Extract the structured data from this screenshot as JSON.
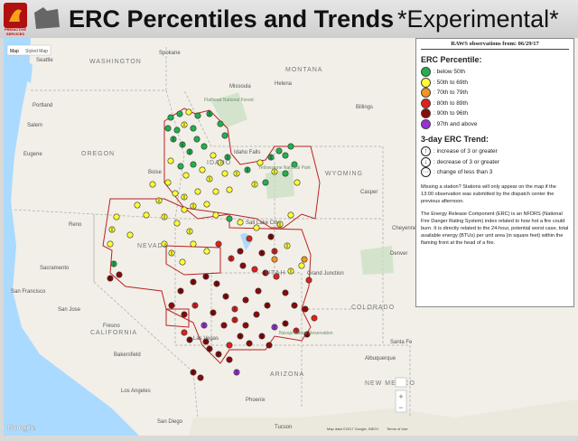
{
  "header": {
    "title": "ERC Percentiles and Trends",
    "subtitle": "*Experimental*",
    "logo_text": "PREDICTIVE SERVICES"
  },
  "map": {
    "controls": [
      "Map",
      "Styled Map"
    ],
    "places": [
      "WASHINGTON",
      "MONTANA",
      "OREGON",
      "IDAHO",
      "WYOMING",
      "CALIFORNIA",
      "ARIZONA",
      "NEW MEXICO",
      "COLORADO",
      "UTAH",
      "NEVADA",
      "Seattle",
      "Spokane",
      "Portland",
      "Salem",
      "Eugene",
      "Boise",
      "Idaho Falls",
      "Helena",
      "Missoula",
      "Billings",
      "Casper",
      "Salt Lake City",
      "Reno",
      "Sacramento",
      "San Francisco",
      "San Jose",
      "Fresno",
      "Bakersfield",
      "Las Vegas",
      "Los Angeles",
      "San Diego",
      "Phoenix",
      "Tucson",
      "Albuquerque",
      "Santa Fe",
      "Denver",
      "Cheyenne",
      "Grand Junction",
      "Flathead National Forest",
      "Yellowstone National Park",
      "Navajo Nation Reservation"
    ],
    "google": "Google",
    "attribution": "Map data ©2017 Google, INEGI",
    "terms": "Terms of Use"
  },
  "legend": {
    "date_line": "RAWS observations from: 06/29/17",
    "percentile_title": "ERC Percentile:",
    "percentile_items": [
      {
        "label": ": below 50th",
        "color": "#22b14c"
      },
      {
        "label": ": 50th to 69th",
        "color": "#ffff33"
      },
      {
        "label": ": 70th to 79th",
        "color": "#f7941d"
      },
      {
        "label": ": 80th to 89th",
        "color": "#e0201c"
      },
      {
        "label": ": 90th to 96th",
        "color": "#8b0a0a"
      },
      {
        "label": ": 97th and above",
        "color": "#9b30d9"
      }
    ],
    "trend_title": "3-day ERC Trend:",
    "trend_items": [
      ": increase of 3 or greater",
      ": decrease of 3 or greater",
      ": change of less than 3"
    ],
    "notes": [
      "Missing a station? Stations will only appear on the map if the 13:00 observation was submitted by the dispatch center the previous afternoon.",
      "The Energy Release Component (ERC) is an NFDRS (National Fire Danger Rating System) index related to how hot a fire could burn. It is directly related to the 24-hour, potential worst case, total available energy (BTUs) per unit area (in square feet) within the flaming front at the head of a fire."
    ]
  }
}
